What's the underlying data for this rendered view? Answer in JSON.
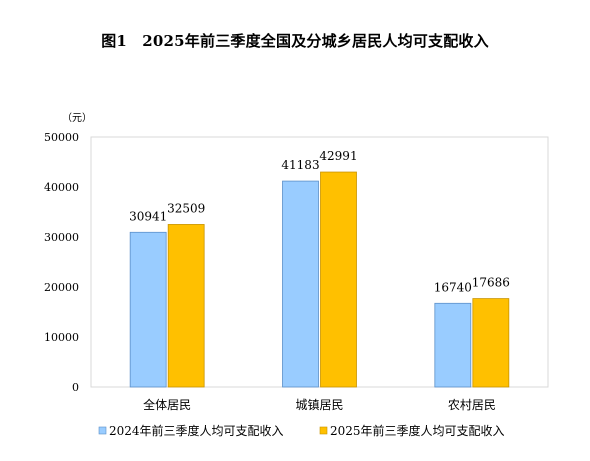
{
  "page": {
    "title": "图1　2025年前三季度全国及分城乡居民人均可支配收入"
  },
  "chart_data": {
    "type": "bar",
    "title": "图1　2025年前三季度全国及分城乡居民人均可支配收入",
    "unit_label": "（元）",
    "xlabel": "",
    "ylabel": "",
    "categories": [
      "全体居民",
      "城镇居民",
      "农村居民"
    ],
    "series": [
      {
        "name": "2024年前三季度人均可支配收入",
        "values": [
          30941,
          41183,
          16740
        ],
        "color": "#99ccff",
        "stroke": "#5b8fc9"
      },
      {
        "name": "2025年前三季度人均可支配收入",
        "values": [
          32509,
          42991,
          17686
        ],
        "color": "#ffc000",
        "stroke": "#c99400"
      }
    ],
    "yticks": [
      0,
      10000,
      20000,
      30000,
      40000,
      50000
    ],
    "ylim": [
      0,
      50000
    ],
    "grid": false,
    "legend_position": "bottom",
    "data_labels": true
  }
}
